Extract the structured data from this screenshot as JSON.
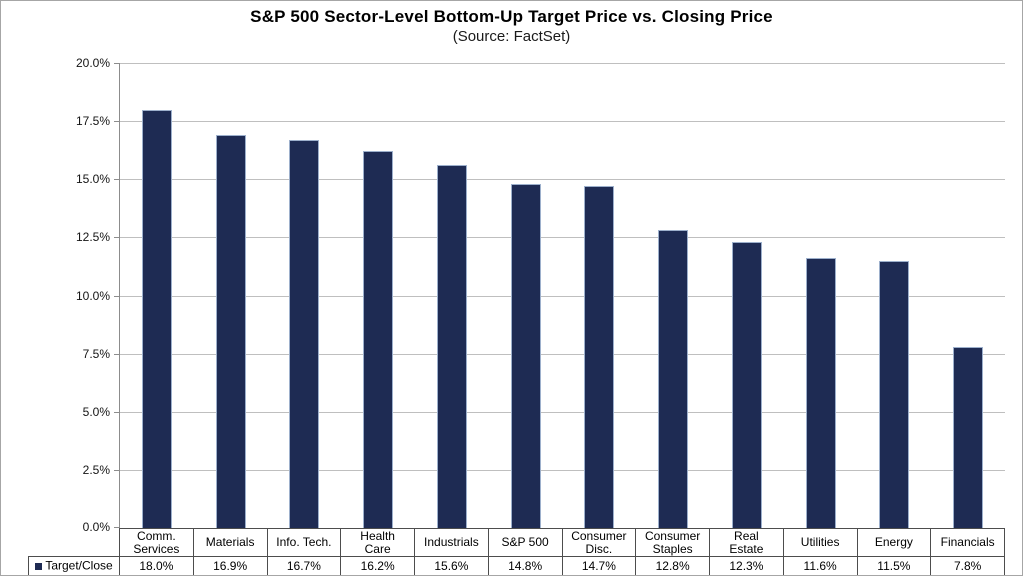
{
  "chart_data": {
    "type": "bar",
    "title": "S&P 500 Sector-Level Bottom-Up Target Price vs. Closing Price",
    "subtitle": "(Source: FactSet)",
    "series_name": "Target/Close",
    "categories": [
      "Comm.\nServices",
      "Materials",
      "Info. Tech.",
      "Health\nCare",
      "Industrials",
      "S&P 500",
      "Consumer\nDisc.",
      "Consumer\nStaples",
      "Real\nEstate",
      "Utilities",
      "Energy",
      "Financials"
    ],
    "values": [
      18.0,
      16.9,
      16.7,
      16.2,
      15.6,
      14.8,
      14.7,
      12.8,
      12.3,
      11.6,
      11.5,
      7.8
    ],
    "value_labels": [
      "18.0%",
      "16.9%",
      "16.7%",
      "16.2%",
      "15.6%",
      "14.8%",
      "14.7%",
      "12.8%",
      "12.3%",
      "11.6%",
      "11.5%",
      "7.8%"
    ],
    "xlabel": "",
    "ylabel": "",
    "ylim": [
      0,
      20
    ],
    "ytick_step": 2.5,
    "ytick_labels": [
      "0.0%",
      "2.5%",
      "5.0%",
      "7.5%",
      "10.0%",
      "12.5%",
      "15.0%",
      "17.5%",
      "20.0%"
    ],
    "grid": true,
    "legend_position": "bottom-left-table",
    "colors": {
      "bar_fill": "#1e2b53",
      "bar_border": "#9db0cc",
      "gridline": "#bfbfbf",
      "axis": "#8c8c8c",
      "table_border": "#4d4d4d"
    }
  }
}
